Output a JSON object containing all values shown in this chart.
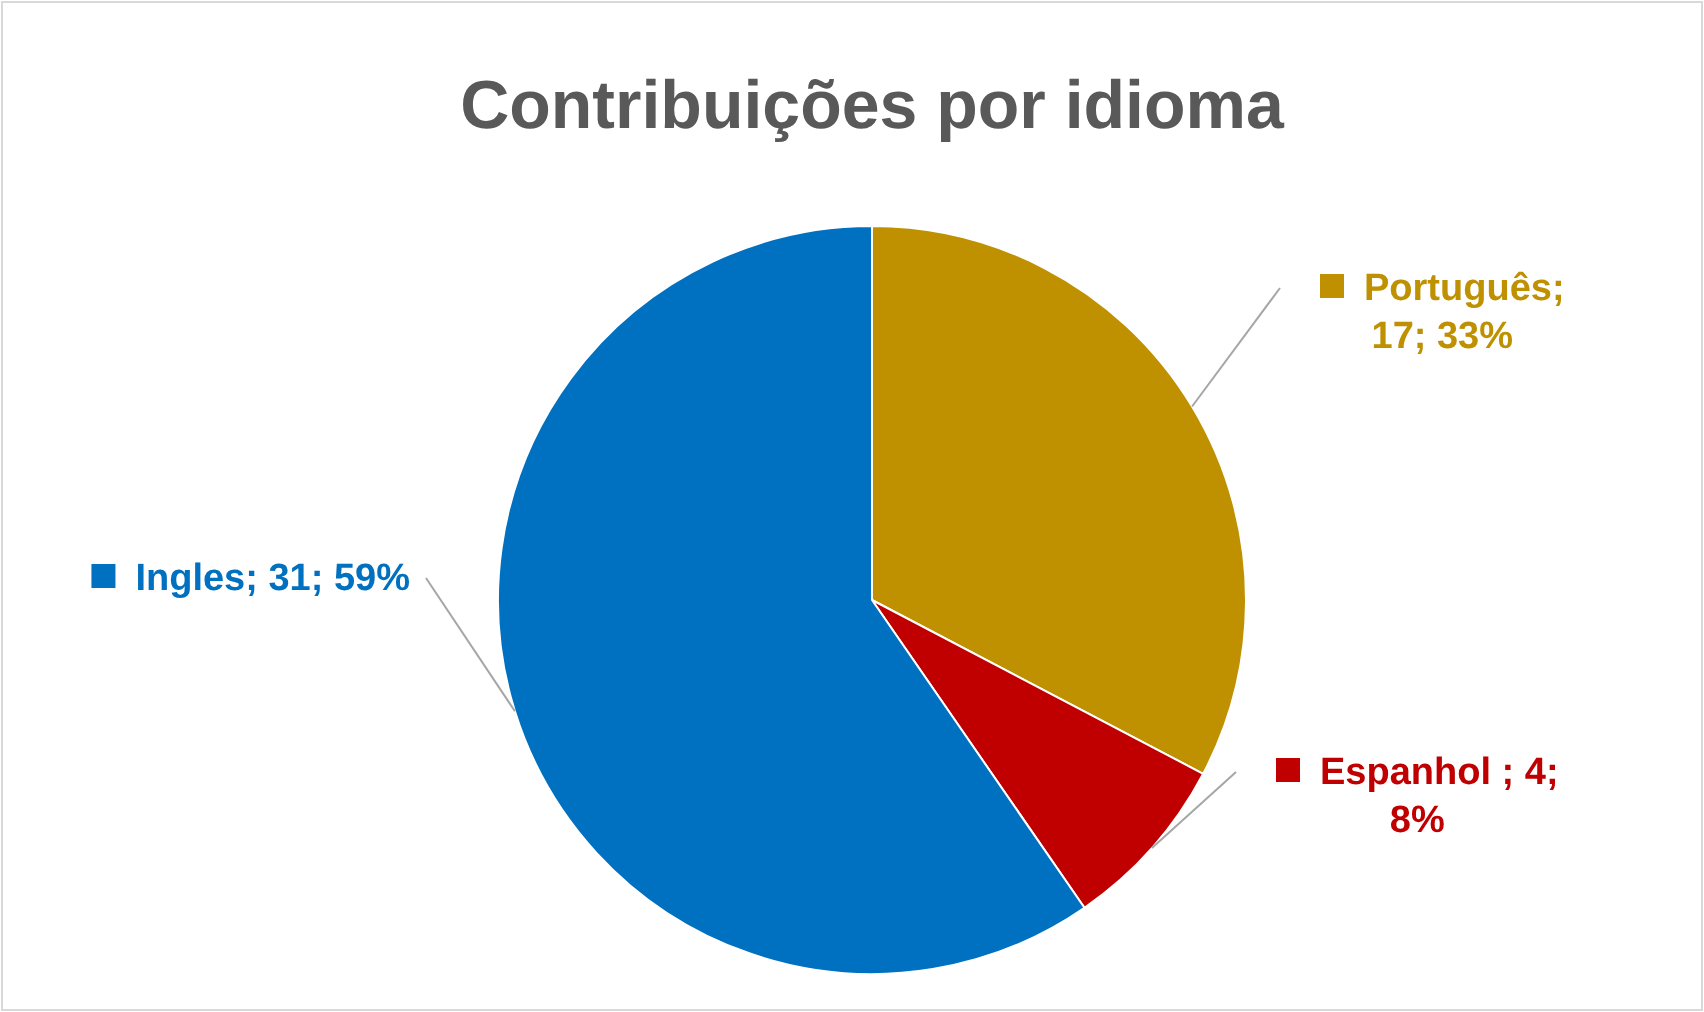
{
  "chart_data": {
    "type": "pie",
    "title": "Contribuições por idioma",
    "categories": [
      "Português",
      "Espanhol ",
      "Ingles"
    ],
    "values": [
      17,
      4,
      31
    ],
    "colors": [
      "#bf9000",
      "#c00000",
      "#0070c0"
    ],
    "value_labels": [
      "; 17; 33%",
      "; 4; 8%",
      "; 31; 59%"
    ],
    "legend": "top left"
  }
}
